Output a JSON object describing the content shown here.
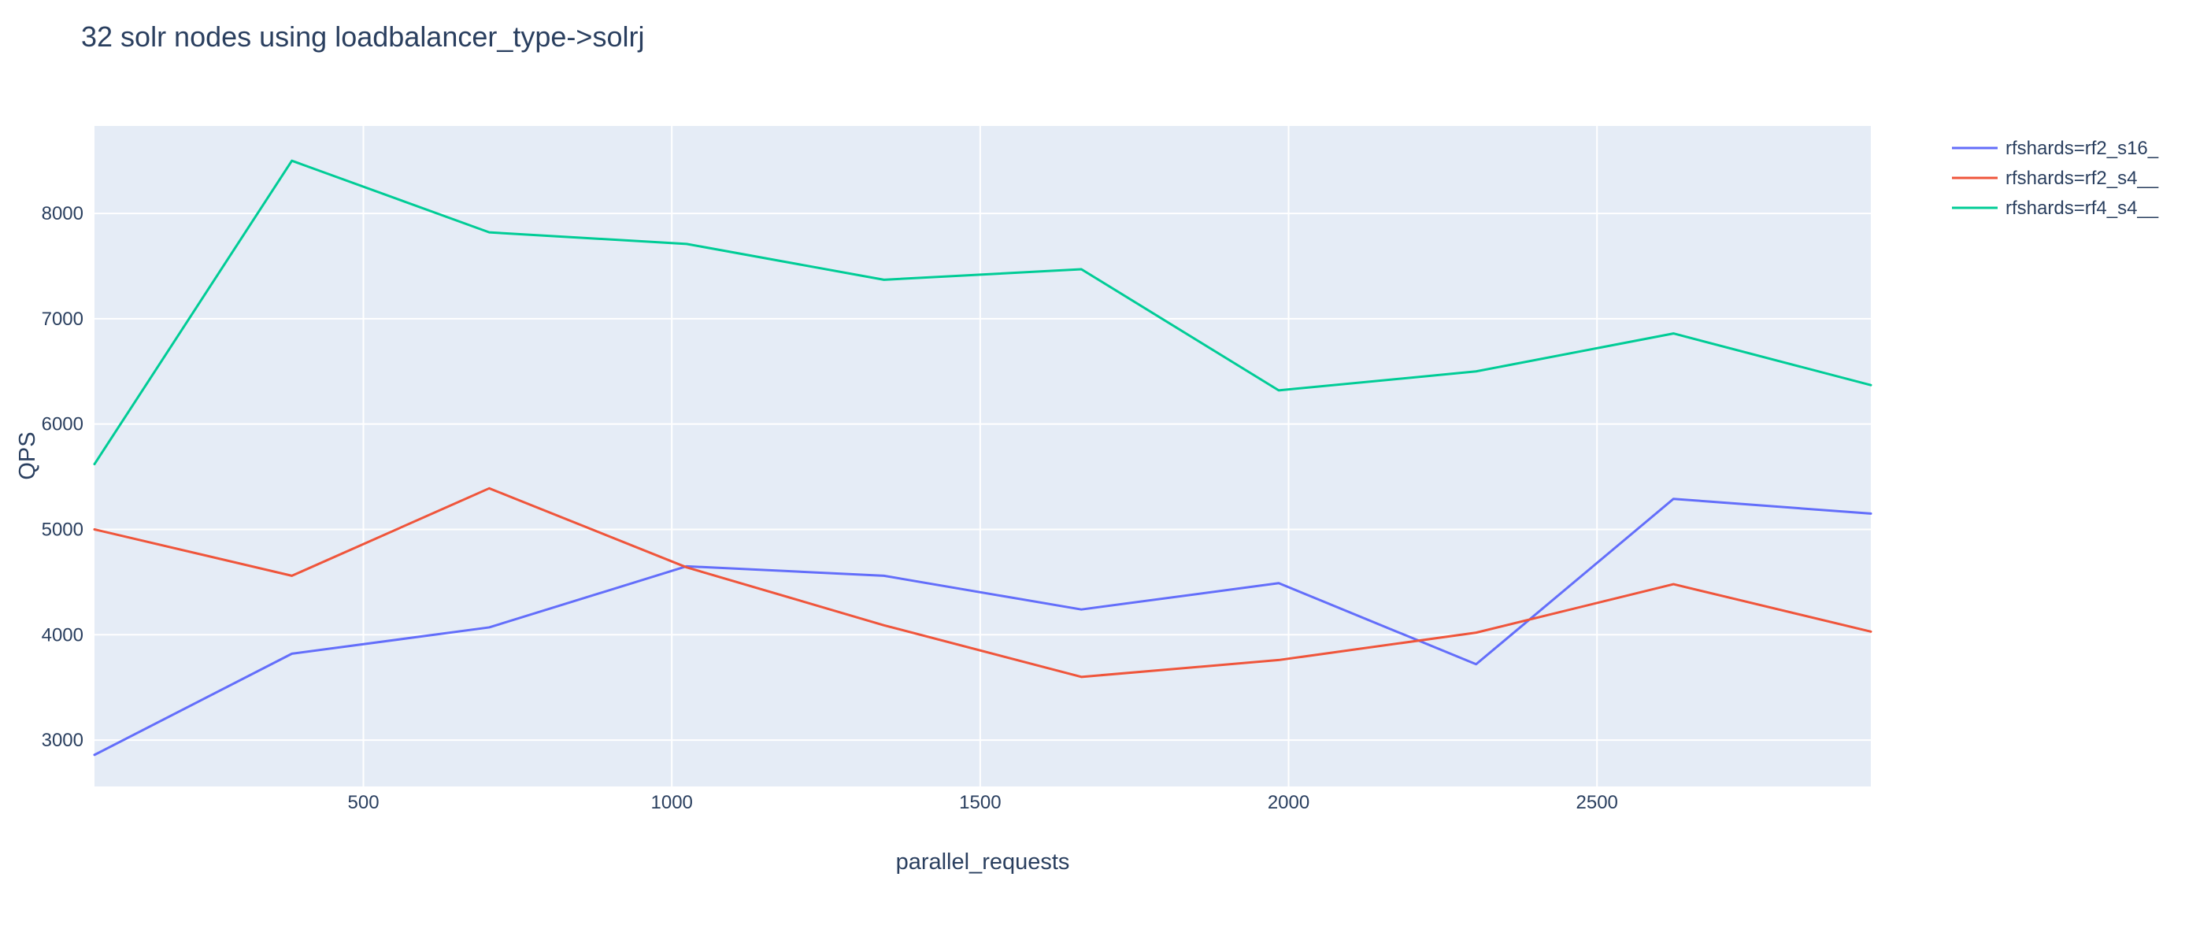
{
  "chart_data": {
    "type": "line",
    "title": "32 solr nodes using loadbalancer_type->solrj",
    "xlabel": "parallel_requests",
    "ylabel": "QPS",
    "xlim": [
      64,
      2944
    ],
    "ylim": [
      2560,
      8830
    ],
    "xticks": [
      500,
      1000,
      1500,
      2000,
      2500
    ],
    "yticks": [
      3000,
      4000,
      5000,
      6000,
      7000,
      8000
    ],
    "x": [
      64,
      384,
      704,
      1024,
      1344,
      1664,
      1984,
      2304,
      2624,
      2944
    ],
    "grid": true,
    "legend_position": "top-right",
    "series": [
      {
        "name": "rfshards=rf2_s16_",
        "color": "#636efa",
        "values": [
          2860,
          3820,
          4070,
          4650,
          4560,
          4240,
          4490,
          3720,
          5290,
          5150
        ]
      },
      {
        "name": "rfshards=rf2_s4__",
        "color": "#ef553b",
        "values": [
          5000,
          4560,
          5390,
          4640,
          4090,
          3600,
          3760,
          4020,
          4480,
          4030
        ]
      },
      {
        "name": "rfshards=rf4_s4__",
        "color": "#00cc96",
        "values": [
          5620,
          8500,
          7820,
          7710,
          7370,
          7470,
          6320,
          6500,
          6860,
          6370
        ]
      }
    ]
  }
}
